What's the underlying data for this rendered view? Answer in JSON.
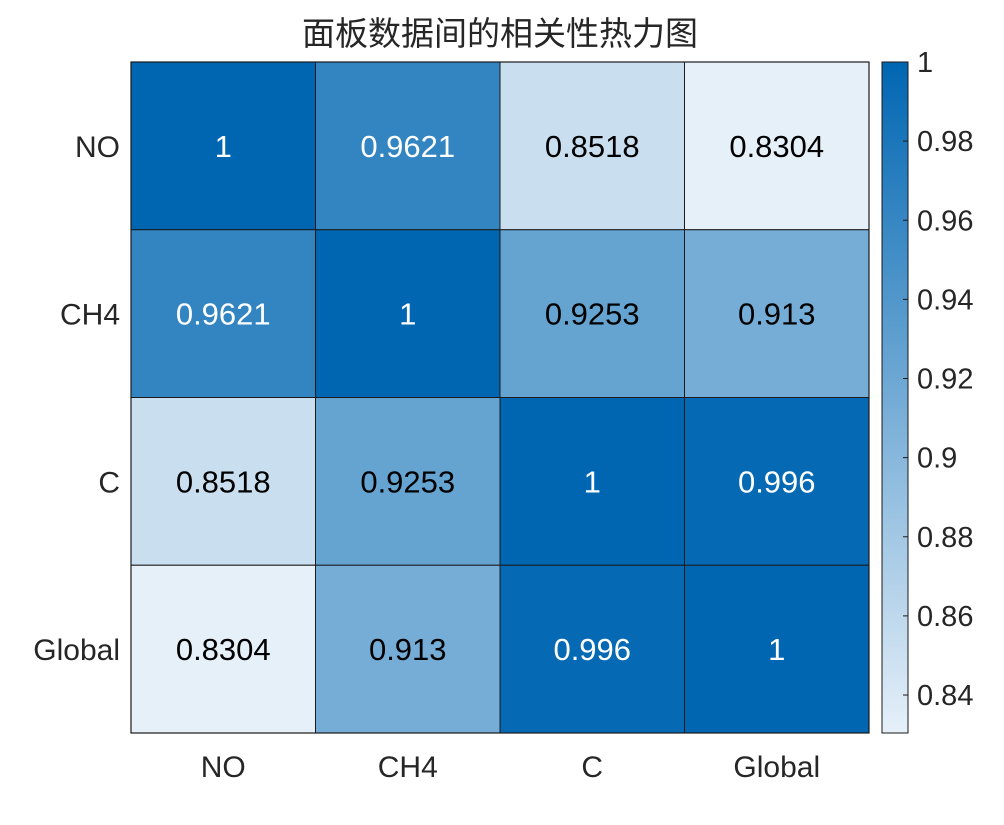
{
  "chart_data": {
    "type": "heatmap",
    "title": "面板数据间的相关性热力图",
    "x_categories": [
      "NO",
      "CH4",
      "C",
      "Global"
    ],
    "y_categories": [
      "NO",
      "CH4",
      "C",
      "Global"
    ],
    "values": [
      [
        1,
        0.9621,
        0.8518,
        0.8304
      ],
      [
        0.9621,
        1,
        0.9253,
        0.913
      ],
      [
        0.8518,
        0.9253,
        1,
        0.996
      ],
      [
        0.8304,
        0.913,
        0.996,
        1
      ]
    ],
    "value_labels": [
      [
        "1",
        "0.9621",
        "0.8518",
        "0.8304"
      ],
      [
        "0.9621",
        "1",
        "0.9253",
        "0.913"
      ],
      [
        "0.8518",
        "0.9253",
        "1",
        "0.996"
      ],
      [
        "0.8304",
        "0.913",
        "0.996",
        "1"
      ]
    ],
    "colorbar": {
      "range": [
        0.8304,
        1
      ],
      "ticks": [
        0.84,
        0.86,
        0.88,
        0.9,
        0.92,
        0.94,
        0.96,
        0.98,
        1
      ],
      "tick_labels": [
        "0.84",
        "0.86",
        "0.88",
        "0.9",
        "0.92",
        "0.94",
        "0.96",
        "0.98",
        "1"
      ],
      "color_low": "#e6f0f9",
      "color_high": "#0066b2"
    },
    "label_colors": {
      "dark_text": "#000000",
      "light_text": "#ffffff"
    }
  }
}
